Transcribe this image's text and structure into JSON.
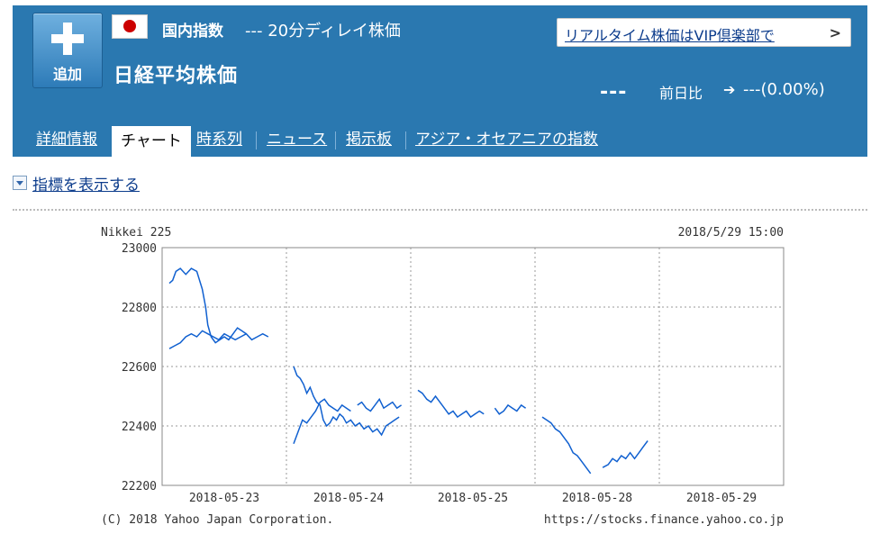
{
  "header": {
    "add_label": "追加",
    "market_type": "国内指数",
    "delay_text": "--- 20分ディレイ株価",
    "index_name": "日経平均株価",
    "vip_link": "リアルタイム株価はVIP倶楽部で",
    "price": "---",
    "change_label": "前日比",
    "change_arrow": "➔",
    "change_value": "---(0.00%)"
  },
  "tabs": [
    {
      "label": "詳細情報",
      "active": false
    },
    {
      "label": "チャート",
      "active": true
    },
    {
      "label": "時系列",
      "active": false
    },
    {
      "label": "ニュース",
      "active": false
    },
    {
      "label": "掲示板",
      "active": false
    },
    {
      "label": "アジア・オセアニアの指数",
      "active": false
    }
  ],
  "indicator_toggle": "指標を表示する",
  "colors": {
    "header_bg": "#2a78b0",
    "line": "#1060d0",
    "grid": "#999999"
  },
  "chart_data": {
    "type": "line",
    "title": "Nikkei 225",
    "timestamp": "2018/5/29 15:00",
    "ylim": [
      22200,
      23000
    ],
    "yticks": [
      "23000",
      "22800",
      "22600",
      "22400",
      "22200"
    ],
    "categories": [
      "2018-05-23",
      "2018-05-24",
      "2018-05-25",
      "2018-05-28",
      "2018-05-29"
    ],
    "copyright": "(C) 2018 Yahoo Japan Corporation.",
    "source_url": "https://stocks.finance.yahoo.co.jp",
    "series": [
      {
        "segments": [
          [
            [
              0.0,
              22880
            ],
            [
              0.03,
              22890
            ],
            [
              0.06,
              22920
            ],
            [
              0.1,
              22930
            ],
            [
              0.15,
              22910
            ],
            [
              0.2,
              22930
            ],
            [
              0.25,
              22920
            ],
            [
              0.3,
              22860
            ],
            [
              0.33,
              22800
            ],
            [
              0.35,
              22740
            ],
            [
              0.38,
              22700
            ],
            [
              0.42,
              22680
            ],
            [
              0.46,
              22690
            ],
            [
              0.5,
              22700
            ],
            [
              0.54,
              22690
            ],
            [
              0.58,
              22710
            ],
            [
              0.62,
              22730
            ],
            [
              0.66,
              22720
            ],
            [
              0.7,
              22710
            ]
          ],
          [
            [
              0.0,
              22660
            ],
            [
              0.05,
              22670
            ],
            [
              0.1,
              22680
            ],
            [
              0.15,
              22700
            ],
            [
              0.2,
              22710
            ],
            [
              0.25,
              22700
            ],
            [
              0.3,
              22720
            ],
            [
              0.35,
              22710
            ],
            [
              0.4,
              22700
            ],
            [
              0.45,
              22690
            ],
            [
              0.5,
              22710
            ],
            [
              0.55,
              22700
            ],
            [
              0.6,
              22690
            ],
            [
              0.65,
              22700
            ],
            [
              0.7,
              22710
            ],
            [
              0.75,
              22690
            ],
            [
              0.8,
              22700
            ],
            [
              0.85,
              22710
            ],
            [
              0.9,
              22700
            ]
          ]
        ]
      },
      {
        "segments": [
          [
            [
              0.0,
              22600
            ],
            [
              0.03,
              22570
            ],
            [
              0.06,
              22560
            ],
            [
              0.09,
              22540
            ],
            [
              0.12,
              22510
            ],
            [
              0.15,
              22530
            ],
            [
              0.18,
              22500
            ],
            [
              0.21,
              22480
            ],
            [
              0.24,
              22470
            ],
            [
              0.27,
              22420
            ],
            [
              0.3,
              22400
            ],
            [
              0.33,
              22410
            ],
            [
              0.36,
              22430
            ],
            [
              0.39,
              22420
            ],
            [
              0.42,
              22440
            ],
            [
              0.45,
              22430
            ],
            [
              0.48,
              22410
            ],
            [
              0.52,
              22420
            ],
            [
              0.56,
              22400
            ],
            [
              0.6,
              22410
            ],
            [
              0.64,
              22390
            ],
            [
              0.68,
              22400
            ],
            [
              0.72,
              22380
            ],
            [
              0.76,
              22390
            ],
            [
              0.8,
              22370
            ],
            [
              0.84,
              22400
            ],
            [
              0.88,
              22410
            ],
            [
              0.92,
              22420
            ],
            [
              0.96,
              22430
            ]
          ],
          [
            [
              0.0,
              22340
            ],
            [
              0.04,
              22380
            ],
            [
              0.08,
              22420
            ],
            [
              0.12,
              22410
            ],
            [
              0.16,
              22430
            ],
            [
              0.2,
              22450
            ],
            [
              0.24,
              22480
            ],
            [
              0.28,
              22490
            ],
            [
              0.32,
              22470
            ],
            [
              0.36,
              22460
            ],
            [
              0.4,
              22450
            ],
            [
              0.44,
              22470
            ],
            [
              0.48,
              22460
            ],
            [
              0.52,
              22450
            ]
          ],
          [
            [
              0.58,
              22470
            ],
            [
              0.62,
              22480
            ],
            [
              0.66,
              22460
            ],
            [
              0.7,
              22450
            ],
            [
              0.74,
              22470
            ],
            [
              0.78,
              22490
            ],
            [
              0.82,
              22460
            ],
            [
              0.86,
              22470
            ],
            [
              0.9,
              22480
            ],
            [
              0.94,
              22460
            ],
            [
              0.98,
              22470
            ]
          ]
        ]
      },
      {
        "segments": [
          [
            [
              0.0,
              22520
            ],
            [
              0.04,
              22510
            ],
            [
              0.08,
              22490
            ],
            [
              0.12,
              22480
            ],
            [
              0.16,
              22500
            ],
            [
              0.2,
              22480
            ],
            [
              0.24,
              22460
            ],
            [
              0.28,
              22440
            ],
            [
              0.32,
              22450
            ],
            [
              0.36,
              22430
            ],
            [
              0.4,
              22440
            ],
            [
              0.44,
              22450
            ],
            [
              0.48,
              22430
            ],
            [
              0.52,
              22440
            ],
            [
              0.56,
              22450
            ],
            [
              0.6,
              22440
            ]
          ],
          [
            [
              0.7,
              22460
            ],
            [
              0.74,
              22440
            ],
            [
              0.78,
              22450
            ],
            [
              0.82,
              22470
            ],
            [
              0.86,
              22460
            ],
            [
              0.9,
              22450
            ],
            [
              0.94,
              22470
            ],
            [
              0.98,
              22460
            ]
          ]
        ]
      },
      {
        "segments": [
          [
            [
              0.0,
              22430
            ],
            [
              0.04,
              22420
            ],
            [
              0.08,
              22410
            ],
            [
              0.12,
              22390
            ],
            [
              0.16,
              22380
            ],
            [
              0.2,
              22360
            ],
            [
              0.24,
              22340
            ],
            [
              0.28,
              22310
            ],
            [
              0.32,
              22300
            ],
            [
              0.36,
              22280
            ],
            [
              0.4,
              22260
            ],
            [
              0.44,
              22240
            ]
          ],
          [
            [
              0.55,
              22260
            ],
            [
              0.6,
              22270
            ],
            [
              0.64,
              22290
            ],
            [
              0.68,
              22280
            ],
            [
              0.72,
              22300
            ],
            [
              0.76,
              22290
            ],
            [
              0.8,
              22310
            ],
            [
              0.84,
              22290
            ],
            [
              0.88,
              22310
            ],
            [
              0.92,
              22330
            ],
            [
              0.96,
              22350
            ]
          ]
        ]
      }
    ]
  }
}
